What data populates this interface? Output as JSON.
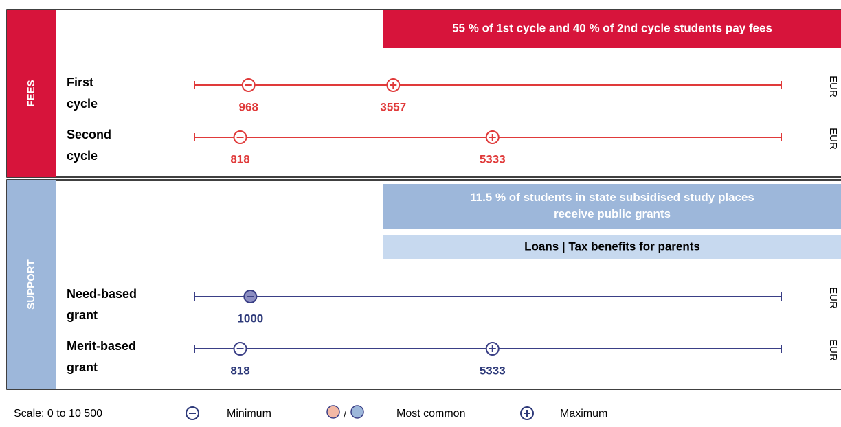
{
  "scale": {
    "min": 0,
    "max": 10500
  },
  "sections": [
    {
      "title": "FEES",
      "color": "#d7143b",
      "line_color": "#e03a3a",
      "value_color": "#e03a3a",
      "banners": [
        {
          "lines": [
            "55 % of 1st cycle and 40 % of 2nd cycle students pay fees"
          ],
          "fill": "#d7143b",
          "text_color": "#ffffff"
        }
      ],
      "rows": [
        {
          "label": [
            "First",
            "cycle"
          ],
          "unit": "EUR",
          "minimum": 968,
          "maximum": 3557
        },
        {
          "label": [
            "Second",
            "cycle"
          ],
          "unit": "EUR",
          "minimum": 818,
          "maximum": 5333
        }
      ]
    },
    {
      "title": "SUPPORT",
      "color": "#9db7da",
      "line_color": "#3a3f86",
      "value_color": "#2e3a7a",
      "banners": [
        {
          "lines": [
            "11.5 % of students in state subsidised study places",
            "receive public grants"
          ],
          "fill": "#9db7da",
          "text_color": "#ffffff"
        },
        {
          "lines": [
            "Loans | Tax benefits for parents"
          ],
          "fill": "#c7d9ef",
          "text_color": "#000000"
        }
      ],
      "rows": [
        {
          "label": [
            "Need-based",
            "grant"
          ],
          "unit": "EUR",
          "minimum_most_common": 1000
        },
        {
          "label": [
            "Merit-based",
            "grant"
          ],
          "unit": "EUR",
          "minimum": 818,
          "maximum": 5333
        }
      ]
    }
  ],
  "legend": {
    "scale": "Scale: 0 to 10 500",
    "minimum": "Minimum",
    "separator": "/",
    "most_common": "Most common",
    "maximum": "Maximum"
  }
}
